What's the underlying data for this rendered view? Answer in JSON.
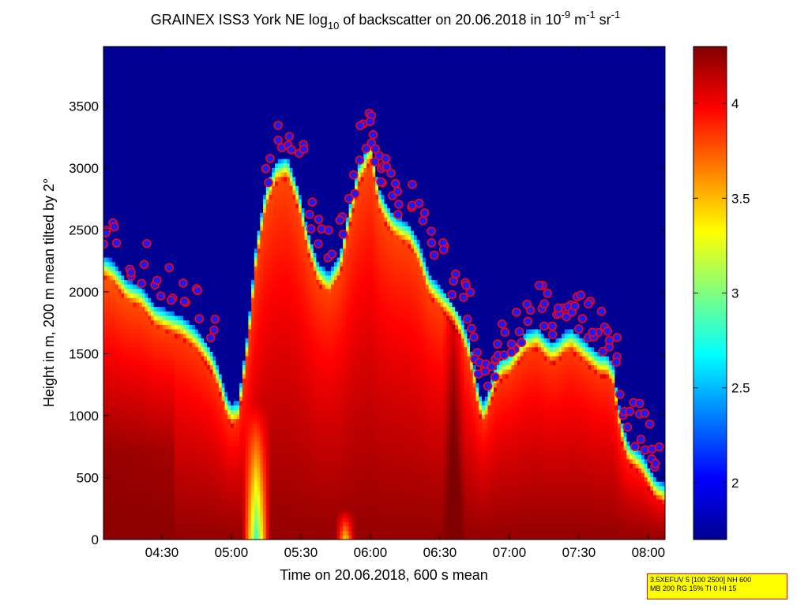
{
  "chart_data": {
    "type": "heatmap",
    "title_parts": {
      "pre": "GRAINEX ISS3 York NE log",
      "sub": "10",
      "mid": " of backscatter on 20.06.2018 in 10",
      "sup1": "-9",
      "mid2": " m",
      "sup2": "-1",
      "mid3": " sr",
      "sup3": "-1"
    },
    "xlabel": "Time on 20.06.2018, 600 s mean",
    "ylabel": "Height in m, 200 m mean tilted by 2°",
    "x_range_hours": [
      4.08,
      8.12
    ],
    "x_ticks": [
      {
        "label": "04:30",
        "hour": 4.5
      },
      {
        "label": "05:00",
        "hour": 5.0
      },
      {
        "label": "05:30",
        "hour": 5.5
      },
      {
        "label": "06:00",
        "hour": 6.0
      },
      {
        "label": "06:30",
        "hour": 6.5
      },
      {
        "label": "07:00",
        "hour": 7.0
      },
      {
        "label": "07:30",
        "hour": 7.5
      },
      {
        "label": "08:00",
        "hour": 8.0
      }
    ],
    "y_range": [
      0,
      3980
    ],
    "y_ticks": [
      0,
      500,
      1000,
      1500,
      2000,
      2500,
      3000,
      3500
    ],
    "colorbar": {
      "range": [
        1.7,
        4.3
      ],
      "ticks": [
        2,
        2.5,
        3,
        3.5,
        4
      ],
      "colormap": "jet"
    },
    "layer_top": {
      "times": [
        4.08,
        4.15,
        4.25,
        4.35,
        4.45,
        4.55,
        4.65,
        4.75,
        4.85,
        4.92,
        4.97,
        5.0,
        5.05,
        5.12,
        5.18,
        5.25,
        5.32,
        5.4,
        5.48,
        5.55,
        5.62,
        5.7,
        5.78,
        5.85,
        5.92,
        5.97,
        6.0,
        6.03,
        6.06,
        6.1,
        6.15,
        6.2,
        6.28,
        6.35,
        6.42,
        6.5,
        6.57,
        6.65,
        6.7,
        6.74,
        6.78,
        6.82,
        6.86,
        6.9,
        6.95,
        7.0,
        7.05,
        7.12,
        7.2,
        7.25,
        7.3,
        7.35,
        7.4,
        7.45,
        7.5,
        7.55,
        7.6,
        7.65,
        7.7,
        7.75,
        7.8,
        7.85,
        7.9,
        7.95,
        8.0,
        8.05,
        8.12
      ],
      "heights": [
        2300,
        2250,
        2100,
        2050,
        1900,
        1850,
        1800,
        1700,
        1550,
        1350,
        1150,
        1100,
        1120,
        1700,
        2400,
        2850,
        3050,
        3100,
        2850,
        2500,
        2250,
        2150,
        2300,
        2700,
        3050,
        3150,
        3250,
        3050,
        2850,
        2750,
        2650,
        2600,
        2550,
        2400,
        2150,
        2050,
        1950,
        1800,
        1650,
        1450,
        1200,
        1100,
        1250,
        1400,
        1480,
        1500,
        1580,
        1680,
        1720,
        1650,
        1600,
        1620,
        1680,
        1700,
        1650,
        1600,
        1550,
        1500,
        1500,
        1400,
        1000,
        800,
        750,
        700,
        600,
        500,
        450
      ]
    },
    "gap_column": {
      "hour": 5.18,
      "half_width": 0.1
    },
    "dip_column": {
      "hour": 5.82,
      "half_width": 0.07
    },
    "dark_column": {
      "hour": 6.6,
      "half_width": 0.08
    }
  },
  "legend_box": {
    "line1": "3.5XEFUV 5 [100 2500] NH 600",
    "line2": "MB 200 RG 15% TI 0 HI 15"
  },
  "colors": {
    "marker_fill": "#1a1aff",
    "marker_edge": "#ff0000",
    "marker_outline": "#ffffff",
    "box_bg": "#ffff00",
    "box_border": "#ff0000"
  }
}
